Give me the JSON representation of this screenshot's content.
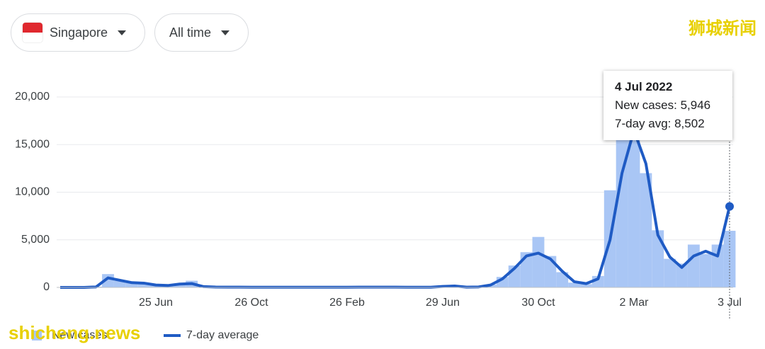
{
  "controls": {
    "region": "Singapore",
    "range": "All time"
  },
  "watermarks": [
    "狮城新闻",
    "shicheng.news"
  ],
  "chart_data": {
    "type": "line",
    "categories": [
      null,
      null,
      null,
      null,
      null,
      null,
      null,
      null,
      "25 Jun",
      null,
      null,
      null,
      null,
      null,
      null,
      null,
      "26 Oct",
      null,
      null,
      null,
      null,
      null,
      null,
      null,
      "26 Feb",
      null,
      null,
      null,
      null,
      null,
      null,
      null,
      "29 Jun",
      null,
      null,
      null,
      null,
      null,
      null,
      null,
      "30 Oct",
      null,
      null,
      null,
      null,
      null,
      null,
      null,
      "2 Mar",
      null,
      null,
      null,
      null,
      null,
      null,
      null,
      "3 Jul"
    ],
    "series": [
      {
        "name": "New cases",
        "type": "bar",
        "color": "#a9c6f5",
        "values": [
          0,
          0,
          0,
          80,
          1400,
          700,
          600,
          400,
          300,
          200,
          300,
          700,
          60,
          40,
          30,
          30,
          20,
          20,
          20,
          20,
          20,
          20,
          20,
          20,
          20,
          30,
          30,
          30,
          30,
          20,
          20,
          20,
          120,
          180,
          40,
          60,
          300,
          1100,
          2300,
          3700,
          5300,
          3300,
          1600,
          500,
          350,
          1200,
          10200,
          16000,
          19000,
          12000,
          6000,
          3000,
          2500,
          4500,
          3500,
          4500,
          5946
        ]
      },
      {
        "name": "7-day average",
        "type": "line",
        "color": "#1f5bc4",
        "values": [
          0,
          0,
          0,
          50,
          1000,
          750,
          500,
          450,
          250,
          200,
          350,
          400,
          80,
          40,
          30,
          30,
          20,
          20,
          20,
          20,
          20,
          20,
          20,
          20,
          20,
          30,
          30,
          30,
          30,
          20,
          20,
          20,
          100,
          150,
          30,
          50,
          250,
          900,
          2000,
          3300,
          3600,
          3000,
          1700,
          600,
          400,
          900,
          5000,
          12000,
          16500,
          13000,
          5500,
          3200,
          2100,
          3300,
          3800,
          3300,
          8502
        ]
      }
    ],
    "ylim": [
      0,
      20000
    ],
    "yticks": [
      0,
      {
        "value": 5000,
        "label": "5,000"
      },
      {
        "value": 10000,
        "label": "10,000"
      },
      {
        "value": 15000,
        "label": "15,000"
      },
      {
        "value": 20000,
        "label": "20,000"
      }
    ],
    "grid": true,
    "tooltip": {
      "title": "4 Jul 2022",
      "lines": [
        "New cases: 5,946",
        "7-day avg: 8,502"
      ]
    }
  }
}
